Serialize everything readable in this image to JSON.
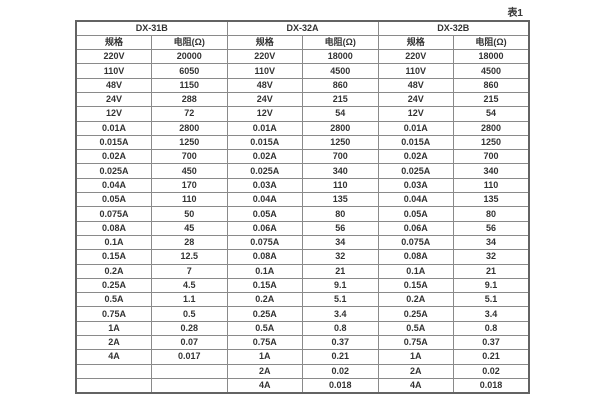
{
  "page": {
    "table_label": "表1"
  },
  "table": {
    "groups": [
      {
        "title": "DX-31B",
        "headers": [
          "规格",
          "电阻(Ω)"
        ],
        "rows": [
          [
            "220V",
            "20000"
          ],
          [
            "110V",
            "6050"
          ],
          [
            "48V",
            "1150"
          ],
          [
            "24V",
            "288"
          ],
          [
            "12V",
            "72"
          ],
          [
            "0.01A",
            "2800"
          ],
          [
            "0.015A",
            "1250"
          ],
          [
            "0.02A",
            "700"
          ],
          [
            "0.025A",
            "450"
          ],
          [
            "0.04A",
            "170"
          ],
          [
            "0.05A",
            "110"
          ],
          [
            "0.075A",
            "50"
          ],
          [
            "0.08A",
            "45"
          ],
          [
            "0.1A",
            "28"
          ],
          [
            "0.15A",
            "12.5"
          ],
          [
            "0.2A",
            "7"
          ],
          [
            "0.25A",
            "4.5"
          ],
          [
            "0.5A",
            "1.1"
          ],
          [
            "0.75A",
            "0.5"
          ],
          [
            "1A",
            "0.28"
          ],
          [
            "2A",
            "0.07"
          ],
          [
            "4A",
            "0.017"
          ],
          [
            "",
            ""
          ],
          [
            "",
            ""
          ]
        ]
      },
      {
        "title": "DX-32A",
        "headers": [
          "规格",
          "电阻(Ω)"
        ],
        "rows": [
          [
            "220V",
            "18000"
          ],
          [
            "110V",
            "4500"
          ],
          [
            "48V",
            "860"
          ],
          [
            "24V",
            "215"
          ],
          [
            "12V",
            "54"
          ],
          [
            "0.01A",
            "2800"
          ],
          [
            "0.015A",
            "1250"
          ],
          [
            "0.02A",
            "700"
          ],
          [
            "0.025A",
            "340"
          ],
          [
            "0.03A",
            "110"
          ],
          [
            "0.04A",
            "135"
          ],
          [
            "0.05A",
            "80"
          ],
          [
            "0.06A",
            "56"
          ],
          [
            "0.075A",
            "34"
          ],
          [
            "0.08A",
            "32"
          ],
          [
            "0.1A",
            "21"
          ],
          [
            "0.15A",
            "9.1"
          ],
          [
            "0.2A",
            "5.1"
          ],
          [
            "0.25A",
            "3.4"
          ],
          [
            "0.5A",
            "0.8"
          ],
          [
            "0.75A",
            "0.37"
          ],
          [
            "1A",
            "0.21"
          ],
          [
            "2A",
            "0.02"
          ],
          [
            "4A",
            "0.018"
          ]
        ]
      },
      {
        "title": "DX-32B",
        "headers": [
          "规格",
          "电阻(Ω)"
        ],
        "rows": [
          [
            "220V",
            "18000"
          ],
          [
            "110V",
            "4500"
          ],
          [
            "48V",
            "860"
          ],
          [
            "24V",
            "215"
          ],
          [
            "12V",
            "54"
          ],
          [
            "0.01A",
            "2800"
          ],
          [
            "0.015A",
            "1250"
          ],
          [
            "0.02A",
            "700"
          ],
          [
            "0.025A",
            "340"
          ],
          [
            "0.03A",
            "110"
          ],
          [
            "0.04A",
            "135"
          ],
          [
            "0.05A",
            "80"
          ],
          [
            "0.06A",
            "56"
          ],
          [
            "0.075A",
            "34"
          ],
          [
            "0.08A",
            "32"
          ],
          [
            "0.1A",
            "21"
          ],
          [
            "0.15A",
            "9.1"
          ],
          [
            "0.2A",
            "5.1"
          ],
          [
            "0.25A",
            "3.4"
          ],
          [
            "0.5A",
            "0.8"
          ],
          [
            "0.75A",
            "0.37"
          ],
          [
            "1A",
            "0.21"
          ],
          [
            "2A",
            "0.02"
          ],
          [
            "4A",
            "0.018"
          ]
        ]
      }
    ],
    "row_count": 24,
    "colors": {
      "border_inner": "#8a8a8a",
      "border_outer": "#636363",
      "text": "#333333",
      "background": "#ffffff"
    }
  }
}
